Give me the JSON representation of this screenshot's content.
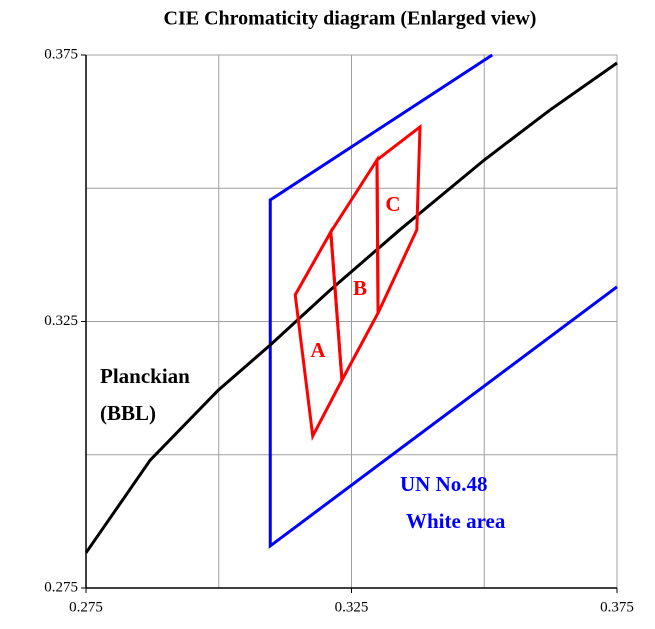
{
  "chart_data": {
    "type": "line",
    "title": "CIE Chromaticity diagram (Enlarged view)",
    "xlim": [
      0.275,
      0.375
    ],
    "ylim": [
      0.275,
      0.375
    ],
    "xticks": [
      0.275,
      0.325,
      0.375
    ],
    "yticks": [
      0.275,
      0.325,
      0.375
    ],
    "xgrid": [
      0.3,
      0.325,
      0.35,
      0.375
    ],
    "ygrid": [
      0.3,
      0.325,
      0.35,
      0.375
    ],
    "grid": true,
    "series": [
      {
        "color": "#0000ff",
        "x": [
          0.3515,
          0.3097,
          0.3097,
          0.375
        ],
        "y": [
          0.375,
          0.3478,
          0.2829,
          0.3315
        ]
      },
      {
        "color": "#000000",
        "x": [
          0.275,
          0.2871,
          0.2999,
          0.3097,
          0.321,
          0.3341,
          0.35,
          0.3624,
          0.375
        ],
        "y": [
          0.2816,
          0.299,
          0.3121,
          0.3206,
          0.3309,
          0.3422,
          0.3553,
          0.3647,
          0.3735
        ]
      },
      {
        "color": "#ff0000",
        "closed": true,
        "x": [
          0.3144,
          0.3211,
          0.3232,
          0.3177
        ],
        "y": [
          0.33,
          0.3418,
          0.314,
          0.3035
        ]
      },
      {
        "color": "#ff0000",
        "closed": true,
        "x": [
          0.3211,
          0.3298,
          0.33,
          0.3232
        ],
        "y": [
          0.3418,
          0.3553,
          0.3266,
          0.314
        ]
      },
      {
        "color": "#ff0000",
        "closed": true,
        "x": [
          0.3298,
          0.3379,
          0.3373,
          0.33
        ],
        "y": [
          0.3553,
          0.3615,
          0.3422,
          0.3266
        ]
      }
    ],
    "annotations": [
      "A",
      "B",
      "C",
      "Planckian",
      "(BBL)",
      "UN No.48",
      "White area"
    ]
  }
}
